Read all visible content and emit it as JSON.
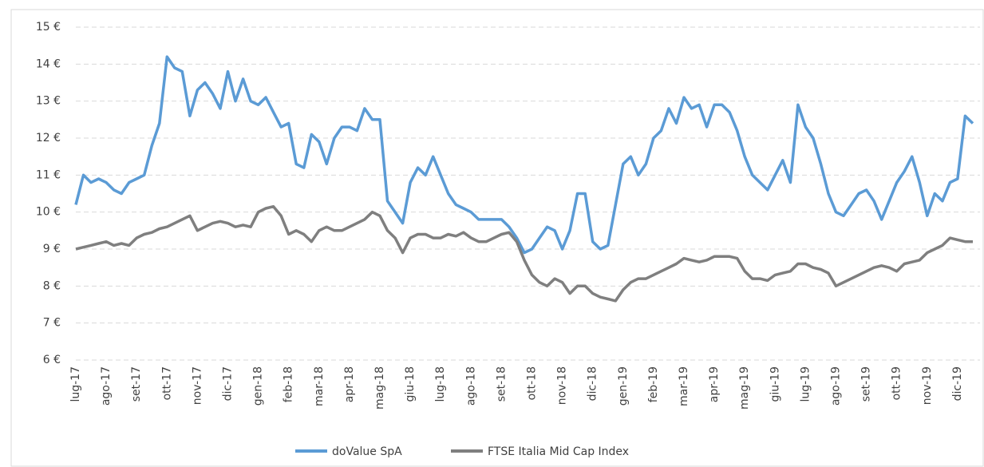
{
  "chart_data": {
    "type": "line",
    "categories": [
      "lug-17",
      null,
      null,
      null,
      "ago-17",
      null,
      null,
      null,
      "set-17",
      null,
      null,
      null,
      "ott-17",
      null,
      null,
      null,
      "nov-17",
      null,
      null,
      null,
      "dic-17",
      null,
      null,
      null,
      "gen-18",
      null,
      null,
      null,
      "feb-18",
      null,
      null,
      null,
      "mar-18",
      null,
      null,
      null,
      "apr-18",
      null,
      null,
      null,
      "mag-18",
      null,
      null,
      null,
      "giu-18",
      null,
      null,
      null,
      "lug-18",
      null,
      null,
      null,
      "ago-18",
      null,
      null,
      null,
      "set-18",
      null,
      null,
      null,
      "ott-18",
      null,
      null,
      null,
      "nov-18",
      null,
      null,
      null,
      "dic-18",
      null,
      null,
      null,
      "gen-19",
      null,
      null,
      null,
      "feb-19",
      null,
      null,
      null,
      "mar-19",
      null,
      null,
      null,
      "apr-19",
      null,
      null,
      null,
      "mag-19",
      null,
      null,
      null,
      "giu-19",
      null,
      null,
      null,
      "lug-19",
      null,
      null,
      null,
      "ago-19",
      null,
      null,
      null,
      "set-19",
      null,
      null,
      null,
      "ott-19",
      null,
      null,
      null,
      "nov-19",
      null,
      null,
      null,
      "dic-19",
      null,
      null
    ],
    "series": [
      {
        "name": "doValue SpA",
        "color": "#5b9bd5",
        "values": [
          10.2,
          11.0,
          10.8,
          10.9,
          10.8,
          10.6,
          10.5,
          10.8,
          10.9,
          11.0,
          11.8,
          12.4,
          14.2,
          13.9,
          13.8,
          12.6,
          13.3,
          13.5,
          13.2,
          12.8,
          13.8,
          13.0,
          13.6,
          13.0,
          12.9,
          13.1,
          12.7,
          12.3,
          12.4,
          11.3,
          11.2,
          12.1,
          11.9,
          11.3,
          12.0,
          12.3,
          12.3,
          12.2,
          12.8,
          12.5,
          12.5,
          10.3,
          10.0,
          9.7,
          10.8,
          11.2,
          11.0,
          11.5,
          11.0,
          10.5,
          10.2,
          10.1,
          10.0,
          9.8,
          9.8,
          9.8,
          9.8,
          9.6,
          9.3,
          8.9,
          9.0,
          9.3,
          9.6,
          9.5,
          9.0,
          9.5,
          10.5,
          10.5,
          9.2,
          9.0,
          9.1,
          10.2,
          11.3,
          11.5,
          11.0,
          11.3,
          12.0,
          12.2,
          12.8,
          12.4,
          13.1,
          12.8,
          12.9,
          12.3,
          12.9,
          12.9,
          12.7,
          12.2,
          11.5,
          11.0,
          10.8,
          10.6,
          11.0,
          11.4,
          10.8,
          12.9,
          12.3,
          12.0,
          11.3,
          10.5,
          10.0,
          9.9,
          10.2,
          10.5,
          10.6,
          10.3,
          9.8,
          10.3,
          10.8,
          11.1,
          11.5,
          10.8,
          9.9,
          10.5,
          10.3,
          10.8,
          10.9,
          12.6,
          12.4
        ]
      },
      {
        "name": "FTSE Italia Mid Cap Index",
        "color": "#7f7f7f",
        "values": [
          9.0,
          9.05,
          9.1,
          9.15,
          9.2,
          9.1,
          9.15,
          9.1,
          9.3,
          9.4,
          9.45,
          9.55,
          9.6,
          9.7,
          9.8,
          9.9,
          9.5,
          9.6,
          9.7,
          9.75,
          9.7,
          9.6,
          9.65,
          9.6,
          10.0,
          10.1,
          10.15,
          9.9,
          9.4,
          9.5,
          9.4,
          9.2,
          9.5,
          9.6,
          9.5,
          9.5,
          9.6,
          9.7,
          9.8,
          10.0,
          9.9,
          9.5,
          9.3,
          8.9,
          9.3,
          9.4,
          9.4,
          9.3,
          9.3,
          9.4,
          9.35,
          9.45,
          9.3,
          9.2,
          9.2,
          9.3,
          9.4,
          9.45,
          9.2,
          8.7,
          8.3,
          8.1,
          8.0,
          8.2,
          8.1,
          7.8,
          8.0,
          8.0,
          7.8,
          7.7,
          7.65,
          7.6,
          7.9,
          8.1,
          8.2,
          8.2,
          8.3,
          8.4,
          8.5,
          8.6,
          8.75,
          8.7,
          8.65,
          8.7,
          8.8,
          8.8,
          8.8,
          8.75,
          8.4,
          8.2,
          8.2,
          8.15,
          8.3,
          8.35,
          8.4,
          8.6,
          8.6,
          8.5,
          8.45,
          8.35,
          8.0,
          8.1,
          8.2,
          8.3,
          8.4,
          8.5,
          8.55,
          8.5,
          8.4,
          8.6,
          8.65,
          8.7,
          8.9,
          9.0,
          9.1,
          9.3,
          9.25,
          9.2,
          9.2
        ]
      }
    ],
    "ylim": [
      6,
      15
    ],
    "yticks": [
      {
        "value": 6,
        "label": "6 €"
      },
      {
        "value": 7,
        "label": "7 €"
      },
      {
        "value": 8,
        "label": "8 €"
      },
      {
        "value": 9,
        "label": "9 €"
      },
      {
        "value": 10,
        "label": "10 €"
      },
      {
        "value": 11,
        "label": "11 €"
      },
      {
        "value": 12,
        "label": "12 €"
      },
      {
        "value": 13,
        "label": "13 €"
      },
      {
        "value": 14,
        "label": "14 €"
      },
      {
        "value": 15,
        "label": "15 €"
      }
    ],
    "grid": true,
    "legend": "bottom"
  }
}
